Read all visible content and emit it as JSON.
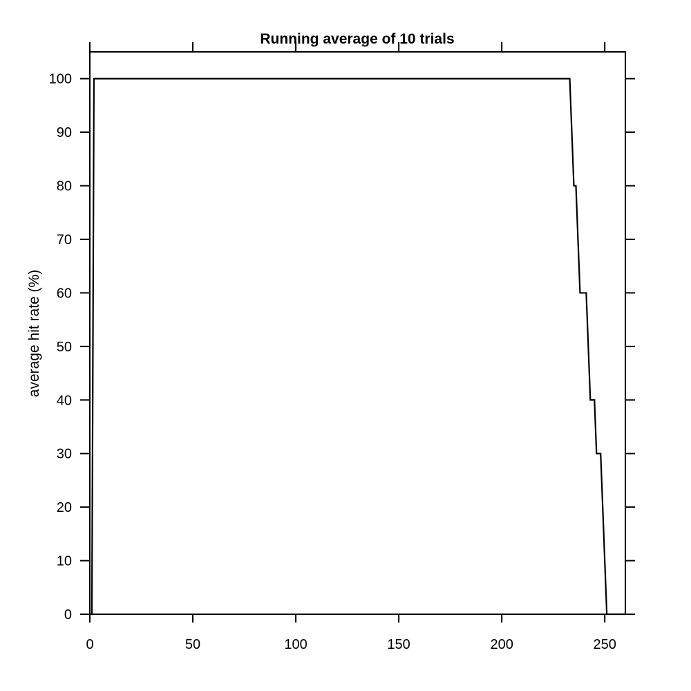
{
  "chart_data": {
    "type": "line",
    "title": "Running average of 10 trials",
    "xlabel": "",
    "ylabel": "average hit rate (%)",
    "xlim": [
      0,
      260
    ],
    "ylim": [
      0,
      105
    ],
    "xticks": [
      0,
      50,
      100,
      150,
      200,
      250
    ],
    "yticks": [
      0,
      10,
      20,
      30,
      40,
      50,
      60,
      70,
      80,
      90,
      100
    ],
    "grid": false,
    "legend": "none",
    "line_color": "#000000",
    "series": [
      {
        "x": [
          0,
          1,
          2,
          233,
          235,
          236,
          238,
          241,
          243,
          245,
          246,
          248,
          251,
          260
        ],
        "y": [
          0,
          0,
          100,
          100,
          80,
          80,
          60,
          60,
          40,
          40,
          30,
          30,
          0,
          0
        ]
      }
    ]
  }
}
